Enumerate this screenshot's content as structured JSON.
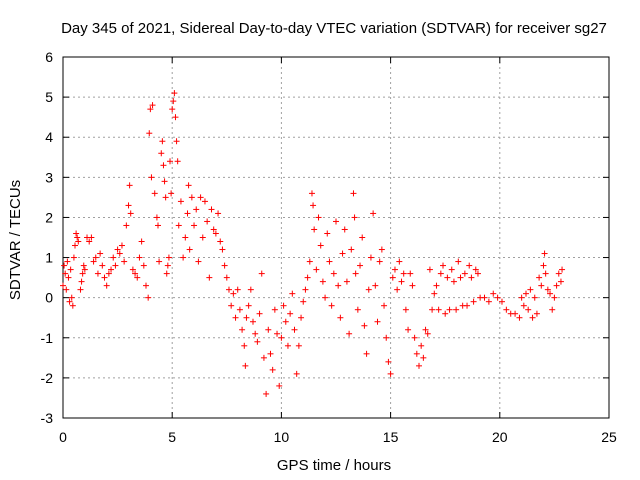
{
  "chart_data": {
    "type": "scatter",
    "title": "Day 345 of 2021, Sidereal Day-to-day VTEC variation (SDTVAR) for receiver sg27",
    "xlabel": "GPS time / hours",
    "ylabel": "SDTVAR / TECUs",
    "xlim": [
      0,
      25
    ],
    "ylim": [
      -3,
      6
    ],
    "xticks": [
      0,
      5,
      10,
      15,
      20,
      25
    ],
    "yticks": [
      -3,
      -2,
      -1,
      0,
      1,
      2,
      3,
      4,
      5,
      6
    ],
    "xtick_labels": [
      "0",
      "5",
      "10",
      "15",
      "20",
      "25"
    ],
    "ytick_labels": [
      "-3",
      "-2",
      "-1",
      "0",
      "1",
      "2",
      "3",
      "4",
      "5",
      "6"
    ],
    "grid": true,
    "marker": "+",
    "series_color": "#ff0000",
    "series": [
      {
        "name": "SDTVAR",
        "points": [
          [
            0.0,
            0.3
          ],
          [
            0.05,
            0.8
          ],
          [
            0.1,
            0.6
          ],
          [
            0.15,
            0.2
          ],
          [
            0.2,
            0.9
          ],
          [
            0.25,
            0.5
          ],
          [
            0.3,
            -0.1
          ],
          [
            0.35,
            0.7
          ],
          [
            0.4,
            0.0
          ],
          [
            0.45,
            -0.2
          ],
          [
            0.5,
            1.0
          ],
          [
            0.55,
            1.3
          ],
          [
            0.6,
            1.6
          ],
          [
            0.65,
            1.5
          ],
          [
            0.7,
            1.4
          ],
          [
            0.8,
            0.2
          ],
          [
            0.85,
            0.4
          ],
          [
            0.9,
            0.6
          ],
          [
            0.95,
            0.8
          ],
          [
            1.0,
            0.7
          ],
          [
            1.1,
            1.5
          ],
          [
            1.2,
            1.4
          ],
          [
            1.3,
            1.5
          ],
          [
            1.4,
            0.9
          ],
          [
            1.5,
            1.0
          ],
          [
            1.6,
            0.6
          ],
          [
            1.7,
            1.1
          ],
          [
            1.8,
            0.8
          ],
          [
            1.9,
            0.5
          ],
          [
            2.0,
            0.3
          ],
          [
            2.1,
            0.6
          ],
          [
            2.2,
            0.7
          ],
          [
            2.3,
            1.0
          ],
          [
            2.4,
            0.8
          ],
          [
            2.5,
            1.2
          ],
          [
            2.6,
            1.1
          ],
          [
            2.7,
            1.3
          ],
          [
            2.8,
            0.9
          ],
          [
            2.9,
            1.8
          ],
          [
            3.0,
            2.3
          ],
          [
            3.05,
            2.8
          ],
          [
            3.1,
            2.1
          ],
          [
            3.2,
            0.7
          ],
          [
            3.3,
            0.6
          ],
          [
            3.4,
            0.5
          ],
          [
            3.5,
            1.0
          ],
          [
            3.6,
            1.4
          ],
          [
            3.7,
            0.8
          ],
          [
            3.8,
            0.3
          ],
          [
            3.9,
            0.0
          ],
          [
            3.95,
            4.1
          ],
          [
            4.0,
            4.7
          ],
          [
            4.05,
            3.0
          ],
          [
            4.1,
            4.8
          ],
          [
            4.2,
            2.6
          ],
          [
            4.3,
            2.0
          ],
          [
            4.35,
            1.8
          ],
          [
            4.4,
            0.9
          ],
          [
            4.5,
            3.6
          ],
          [
            4.55,
            3.9
          ],
          [
            4.6,
            3.3
          ],
          [
            4.65,
            2.9
          ],
          [
            4.7,
            2.5
          ],
          [
            4.75,
            0.6
          ],
          [
            4.8,
            0.8
          ],
          [
            4.85,
            1.0
          ],
          [
            4.9,
            3.4
          ],
          [
            4.95,
            2.6
          ],
          [
            5.0,
            4.7
          ],
          [
            5.05,
            4.9
          ],
          [
            5.1,
            5.1
          ],
          [
            5.15,
            4.5
          ],
          [
            5.2,
            3.9
          ],
          [
            5.25,
            3.4
          ],
          [
            5.3,
            1.8
          ],
          [
            5.4,
            2.4
          ],
          [
            5.5,
            1.0
          ],
          [
            5.6,
            1.5
          ],
          [
            5.7,
            2.1
          ],
          [
            5.75,
            2.8
          ],
          [
            5.8,
            1.2
          ],
          [
            5.9,
            2.5
          ],
          [
            6.0,
            1.8
          ],
          [
            6.1,
            2.2
          ],
          [
            6.2,
            0.9
          ],
          [
            6.3,
            2.5
          ],
          [
            6.4,
            1.5
          ],
          [
            6.5,
            2.4
          ],
          [
            6.6,
            1.9
          ],
          [
            6.7,
            0.5
          ],
          [
            6.8,
            2.2
          ],
          [
            6.9,
            1.7
          ],
          [
            7.0,
            1.6
          ],
          [
            7.1,
            2.1
          ],
          [
            7.2,
            1.4
          ],
          [
            7.3,
            1.2
          ],
          [
            7.4,
            0.8
          ],
          [
            7.5,
            0.5
          ],
          [
            7.6,
            0.2
          ],
          [
            7.7,
            -0.2
          ],
          [
            7.8,
            0.1
          ],
          [
            7.9,
            -0.5
          ],
          [
            8.0,
            0.2
          ],
          [
            8.1,
            -0.3
          ],
          [
            8.2,
            -0.8
          ],
          [
            8.3,
            -1.2
          ],
          [
            8.35,
            -1.7
          ],
          [
            8.4,
            -0.5
          ],
          [
            8.5,
            -0.2
          ],
          [
            8.6,
            0.2
          ],
          [
            8.7,
            -0.6
          ],
          [
            8.8,
            -0.9
          ],
          [
            8.9,
            -1.1
          ],
          [
            9.0,
            -0.4
          ],
          [
            9.1,
            0.6
          ],
          [
            9.2,
            -1.5
          ],
          [
            9.3,
            -2.4
          ],
          [
            9.4,
            -0.8
          ],
          [
            9.5,
            -1.4
          ],
          [
            9.6,
            -1.8
          ],
          [
            9.7,
            -0.3
          ],
          [
            9.8,
            -0.9
          ],
          [
            9.9,
            -2.2
          ],
          [
            10.0,
            -1.0
          ],
          [
            10.1,
            -0.2
          ],
          [
            10.2,
            -0.6
          ],
          [
            10.3,
            -1.2
          ],
          [
            10.4,
            -0.4
          ],
          [
            10.5,
            0.1
          ],
          [
            10.6,
            -0.8
          ],
          [
            10.7,
            -1.9
          ],
          [
            10.8,
            -1.2
          ],
          [
            10.9,
            -0.5
          ],
          [
            11.0,
            -0.1
          ],
          [
            11.1,
            0.2
          ],
          [
            11.2,
            0.5
          ],
          [
            11.3,
            0.9
          ],
          [
            11.4,
            2.6
          ],
          [
            11.45,
            2.3
          ],
          [
            11.5,
            1.7
          ],
          [
            11.6,
            0.7
          ],
          [
            11.7,
            2.0
          ],
          [
            11.8,
            1.3
          ],
          [
            11.9,
            0.4
          ],
          [
            12.0,
            0.0
          ],
          [
            12.1,
            1.6
          ],
          [
            12.2,
            0.9
          ],
          [
            12.3,
            -0.2
          ],
          [
            12.4,
            0.6
          ],
          [
            12.5,
            1.9
          ],
          [
            12.6,
            0.3
          ],
          [
            12.7,
            -0.5
          ],
          [
            12.8,
            1.1
          ],
          [
            12.9,
            1.7
          ],
          [
            13.0,
            0.4
          ],
          [
            13.1,
            -0.9
          ],
          [
            13.2,
            1.2
          ],
          [
            13.3,
            2.6
          ],
          [
            13.35,
            2.0
          ],
          [
            13.4,
            0.6
          ],
          [
            13.5,
            -0.3
          ],
          [
            13.6,
            0.8
          ],
          [
            13.7,
            1.5
          ],
          [
            13.8,
            -0.7
          ],
          [
            13.9,
            -1.4
          ],
          [
            14.0,
            0.2
          ],
          [
            14.1,
            1.0
          ],
          [
            14.2,
            2.1
          ],
          [
            14.3,
            0.3
          ],
          [
            14.4,
            -0.6
          ],
          [
            14.5,
            0.9
          ],
          [
            14.6,
            1.2
          ],
          [
            14.7,
            -0.2
          ],
          [
            14.8,
            -1.0
          ],
          [
            14.9,
            -1.6
          ],
          [
            15.0,
            -1.9
          ],
          [
            15.1,
            0.5
          ],
          [
            15.2,
            0.7
          ],
          [
            15.3,
            0.2
          ],
          [
            15.4,
            0.9
          ],
          [
            15.5,
            0.4
          ],
          [
            15.6,
            0.6
          ],
          [
            15.7,
            -0.3
          ],
          [
            15.8,
            -0.8
          ],
          [
            15.9,
            0.6
          ],
          [
            16.0,
            0.3
          ],
          [
            16.1,
            -1.0
          ],
          [
            16.2,
            -1.4
          ],
          [
            16.3,
            -1.7
          ],
          [
            16.4,
            -1.2
          ],
          [
            16.5,
            -1.5
          ],
          [
            16.6,
            -0.8
          ],
          [
            16.7,
            -0.9
          ],
          [
            16.8,
            0.7
          ],
          [
            16.9,
            -0.3
          ],
          [
            17.0,
            0.1
          ],
          [
            17.1,
            0.3
          ],
          [
            17.2,
            -0.3
          ],
          [
            17.3,
            0.6
          ],
          [
            17.4,
            0.8
          ],
          [
            17.5,
            -0.4
          ],
          [
            17.6,
            0.5
          ],
          [
            17.7,
            -0.3
          ],
          [
            17.8,
            0.7
          ],
          [
            17.9,
            0.4
          ],
          [
            18.0,
            -0.3
          ],
          [
            18.1,
            0.9
          ],
          [
            18.2,
            0.5
          ],
          [
            18.3,
            -0.2
          ],
          [
            18.4,
            0.6
          ],
          [
            18.5,
            -0.2
          ],
          [
            18.6,
            0.8
          ],
          [
            18.7,
            0.5
          ],
          [
            18.8,
            -0.1
          ],
          [
            18.9,
            0.7
          ],
          [
            19.0,
            0.6
          ],
          [
            19.1,
            0.0
          ],
          [
            19.3,
            0.0
          ],
          [
            19.5,
            -0.1
          ],
          [
            19.7,
            0.1
          ],
          [
            19.9,
            0.0
          ],
          [
            20.1,
            -0.1
          ],
          [
            20.3,
            -0.3
          ],
          [
            20.5,
            -0.4
          ],
          [
            20.7,
            -0.4
          ],
          [
            20.9,
            -0.5
          ],
          [
            21.0,
            0.0
          ],
          [
            21.1,
            -0.2
          ],
          [
            21.2,
            0.1
          ],
          [
            21.3,
            -0.3
          ],
          [
            21.4,
            0.2
          ],
          [
            21.5,
            -0.5
          ],
          [
            21.6,
            0.0
          ],
          [
            21.7,
            -0.4
          ],
          [
            21.8,
            0.5
          ],
          [
            21.9,
            0.3
          ],
          [
            22.0,
            0.8
          ],
          [
            22.05,
            1.1
          ],
          [
            22.1,
            0.6
          ],
          [
            22.2,
            0.2
          ],
          [
            22.3,
            0.1
          ],
          [
            22.4,
            -0.3
          ],
          [
            22.5,
            0.0
          ],
          [
            22.6,
            0.3
          ],
          [
            22.7,
            0.6
          ],
          [
            22.8,
            0.4
          ],
          [
            22.85,
            0.7
          ]
        ]
      }
    ]
  }
}
